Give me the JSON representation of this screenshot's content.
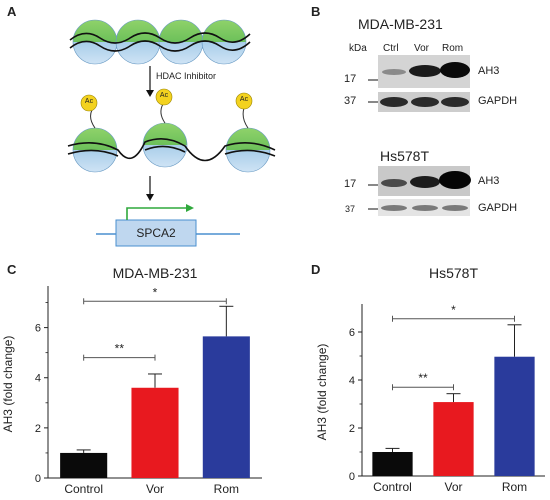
{
  "panels": {
    "a": {
      "letter": "A",
      "treatment_label": "HDAC Inhibitor",
      "acetyl_label": "Ac",
      "gene_label": "SPCA2"
    },
    "b": {
      "letter": "B",
      "blots": [
        {
          "cell_line": "MDA-MB-231",
          "kda_label": "kDa",
          "lanes": [
            "Ctrl",
            "Vor",
            "Rom"
          ],
          "rows": [
            {
              "marker": "17",
              "protein": "AH3"
            },
            {
              "marker": "37",
              "protein": "GAPDH"
            }
          ]
        },
        {
          "cell_line": "Hs578T",
          "rows": [
            {
              "marker": "17",
              "protein": "AH3"
            },
            {
              "marker": "37",
              "protein": "GAPDH"
            }
          ]
        }
      ]
    }
  },
  "colors": {
    "control": "#0a0a0a",
    "vor": "#e8191f",
    "rom": "#2a3b9c",
    "nucleosome_top": "#7ecb5a",
    "nucleosome_bottom": "#bcd8f0",
    "arrow_green": "#2fa83c"
  },
  "chart_data": [
    {
      "panel": "C",
      "type": "bar",
      "title": "MDA-MB-231",
      "ylabel": "AH3 (fold change)",
      "xlabel": "",
      "categories": [
        "Control",
        "Vor",
        "Rom"
      ],
      "values": [
        1.0,
        3.6,
        5.65
      ],
      "errors": [
        0.12,
        0.55,
        1.2
      ],
      "ylim": [
        0,
        7.5
      ],
      "yticks": [
        0,
        2,
        4,
        6
      ],
      "significance": [
        {
          "from": 0,
          "to": 1,
          "label": "**",
          "level": 4.8
        },
        {
          "from": 0,
          "to": 2,
          "label": "*",
          "level": 7.05
        }
      ]
    },
    {
      "panel": "D",
      "type": "bar",
      "title": "Hs578T",
      "ylabel": "AH3 (fold change)",
      "xlabel": "",
      "categories": [
        "Control",
        "Vor",
        "Rom"
      ],
      "values": [
        1.0,
        3.08,
        4.97
      ],
      "errors": [
        0.15,
        0.35,
        1.33
      ],
      "ylim": [
        0,
        7
      ],
      "yticks": [
        0,
        2,
        4,
        6
      ],
      "significance": [
        {
          "from": 0,
          "to": 1,
          "label": "**",
          "level": 3.7
        },
        {
          "from": 0,
          "to": 2,
          "label": "*",
          "level": 6.55
        }
      ]
    }
  ]
}
